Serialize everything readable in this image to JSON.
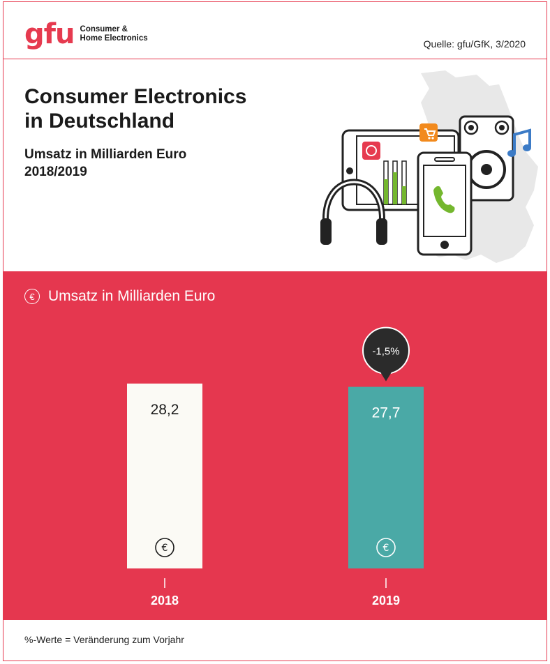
{
  "header": {
    "logo_mark": "gfu",
    "logo_line1": "Consumer &",
    "logo_line2": "Home Electronics",
    "source": "Quelle: gfu/GfK, 3/2020"
  },
  "title": {
    "line1": "Consumer Electronics",
    "line2": "in Deutschland",
    "subtitle_line1": "Umsatz in Milliarden Euro",
    "subtitle_line2": "2018/2019"
  },
  "panel": {
    "heading": "Umsatz in Milliarden Euro",
    "euro_symbol": "€"
  },
  "chart_data": {
    "type": "bar",
    "categories": [
      "2018",
      "2019"
    ],
    "values": [
      28.2,
      27.7
    ],
    "value_labels": [
      "28,2",
      "27,7"
    ],
    "change_label": "-1,5%",
    "bar_colors": [
      "#fbfaf5",
      "#4aa9a6"
    ],
    "value_label_colors": [
      "#1a1a1a",
      "#ffffff"
    ],
    "title": "Umsatz in Milliarden Euro",
    "xlabel": "",
    "ylabel": ""
  },
  "footer": {
    "note": "%-Werte = Veränderung zum Vorjahr"
  },
  "colors": {
    "brand_red": "#e63a4f",
    "panel_red": "#e5374f",
    "teal": "#4aa9a6",
    "callout": "#2b2b2b"
  }
}
